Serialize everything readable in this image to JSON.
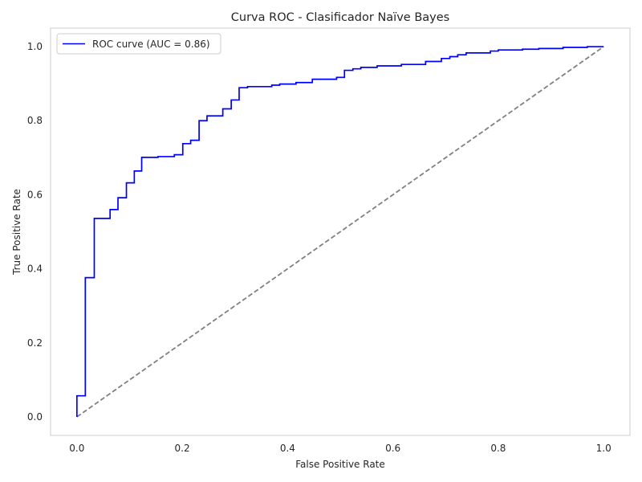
{
  "chart_data": {
    "type": "line",
    "title": "Curva ROC - Clasificador Naïve Bayes",
    "xlabel": "False Positive Rate",
    "ylabel": "True Positive Rate",
    "xlim": [
      -0.05,
      1.05
    ],
    "ylim": [
      -0.05,
      1.05
    ],
    "grid": false,
    "legend_position": "top-left",
    "x_ticks": [
      {
        "value": 0.0,
        "label": "0.0"
      },
      {
        "value": 0.2,
        "label": "0.2"
      },
      {
        "value": 0.4,
        "label": "0.4"
      },
      {
        "value": 0.6,
        "label": "0.6"
      },
      {
        "value": 0.8,
        "label": "0.8"
      },
      {
        "value": 1.0,
        "label": "1.0"
      }
    ],
    "y_ticks": [
      {
        "value": 0.0,
        "label": "0.0"
      },
      {
        "value": 0.2,
        "label": "0.2"
      },
      {
        "value": 0.4,
        "label": "0.4"
      },
      {
        "value": 0.6,
        "label": "0.6"
      },
      {
        "value": 0.8,
        "label": "0.8"
      },
      {
        "value": 1.0,
        "label": "1.0"
      }
    ],
    "series": [
      {
        "name": "ROC curve (AUC = 0.86)",
        "color": "#0000ff",
        "style": "solid-step",
        "points": [
          [
            0.0,
            0.0
          ],
          [
            0.0,
            0.057
          ],
          [
            0.016,
            0.057
          ],
          [
            0.016,
            0.376
          ],
          [
            0.033,
            0.376
          ],
          [
            0.033,
            0.536
          ],
          [
            0.063,
            0.536
          ],
          [
            0.063,
            0.56
          ],
          [
            0.078,
            0.56
          ],
          [
            0.078,
            0.592
          ],
          [
            0.094,
            0.592
          ],
          [
            0.094,
            0.632
          ],
          [
            0.109,
            0.632
          ],
          [
            0.109,
            0.664
          ],
          [
            0.123,
            0.664
          ],
          [
            0.123,
            0.701
          ],
          [
            0.154,
            0.701
          ],
          [
            0.154,
            0.703
          ],
          [
            0.185,
            0.703
          ],
          [
            0.185,
            0.708
          ],
          [
            0.201,
            0.708
          ],
          [
            0.201,
            0.738
          ],
          [
            0.216,
            0.738
          ],
          [
            0.216,
            0.747
          ],
          [
            0.232,
            0.747
          ],
          [
            0.232,
            0.8
          ],
          [
            0.247,
            0.8
          ],
          [
            0.247,
            0.813
          ],
          [
            0.277,
            0.813
          ],
          [
            0.277,
            0.832
          ],
          [
            0.293,
            0.832
          ],
          [
            0.293,
            0.856
          ],
          [
            0.308,
            0.856
          ],
          [
            0.308,
            0.889
          ],
          [
            0.324,
            0.889
          ],
          [
            0.324,
            0.892
          ],
          [
            0.37,
            0.892
          ],
          [
            0.37,
            0.896
          ],
          [
            0.385,
            0.896
          ],
          [
            0.385,
            0.899
          ],
          [
            0.416,
            0.899
          ],
          [
            0.416,
            0.903
          ],
          [
            0.447,
            0.903
          ],
          [
            0.447,
            0.912
          ],
          [
            0.493,
            0.912
          ],
          [
            0.493,
            0.917
          ],
          [
            0.508,
            0.917
          ],
          [
            0.508,
            0.936
          ],
          [
            0.524,
            0.936
          ],
          [
            0.524,
            0.94
          ],
          [
            0.539,
            0.94
          ],
          [
            0.539,
            0.944
          ],
          [
            0.57,
            0.944
          ],
          [
            0.57,
            0.948
          ],
          [
            0.616,
            0.948
          ],
          [
            0.616,
            0.952
          ],
          [
            0.662,
            0.952
          ],
          [
            0.662,
            0.96
          ],
          [
            0.692,
            0.96
          ],
          [
            0.692,
            0.968
          ],
          [
            0.708,
            0.968
          ],
          [
            0.708,
            0.973
          ],
          [
            0.723,
            0.973
          ],
          [
            0.723,
            0.978
          ],
          [
            0.739,
            0.978
          ],
          [
            0.739,
            0.983
          ],
          [
            0.785,
            0.983
          ],
          [
            0.785,
            0.988
          ],
          [
            0.8,
            0.988
          ],
          [
            0.8,
            0.991
          ],
          [
            0.846,
            0.991
          ],
          [
            0.846,
            0.993
          ],
          [
            0.877,
            0.993
          ],
          [
            0.877,
            0.995
          ],
          [
            0.923,
            0.995
          ],
          [
            0.923,
            0.998
          ],
          [
            0.969,
            0.998
          ],
          [
            0.969,
            1.0
          ],
          [
            1.0,
            1.0
          ]
        ]
      },
      {
        "name": "",
        "color": "#808080",
        "style": "dashed",
        "points": [
          [
            0.0,
            0.0
          ],
          [
            1.0,
            1.0
          ]
        ]
      }
    ]
  }
}
